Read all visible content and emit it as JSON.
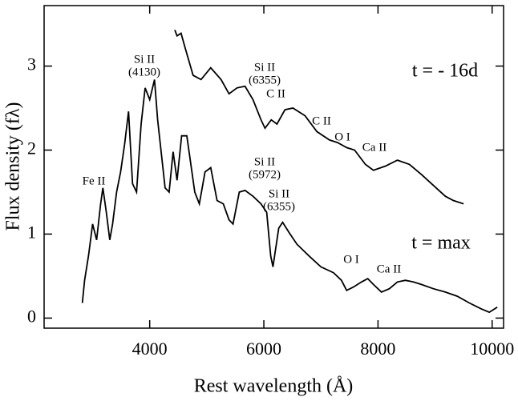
{
  "chart_data": {
    "type": "line",
    "xlabel": "Rest wavelength (Å)",
    "ylabel": "Flux density (fλ)",
    "xlim": [
      2150,
      10200
    ],
    "xticks": [
      4000,
      6000,
      8000,
      10000
    ],
    "ylim": [
      -0.12,
      3.72
    ],
    "yticks": [
      0,
      1,
      2,
      3
    ],
    "series": [
      {
        "name": "t = - 16d",
        "color": "#000000",
        "x": [
          4440,
          4480,
          4550,
          4620,
          4760,
          4900,
          5070,
          5250,
          5390,
          5530,
          5670,
          5810,
          5950,
          6020,
          6130,
          6230,
          6370,
          6510,
          6720,
          6930,
          7150,
          7290,
          7450,
          7590,
          7780,
          7920,
          8130,
          8340,
          8550,
          8760,
          8970,
          9180,
          9320,
          9500
        ],
        "values": [
          3.43,
          3.36,
          3.39,
          3.22,
          2.89,
          2.84,
          2.98,
          2.84,
          2.67,
          2.74,
          2.76,
          2.6,
          2.36,
          2.26,
          2.36,
          2.31,
          2.48,
          2.5,
          2.41,
          2.22,
          2.12,
          2.09,
          2.03,
          2.0,
          1.83,
          1.76,
          1.81,
          1.88,
          1.83,
          1.71,
          1.58,
          1.45,
          1.4,
          1.36
        ]
      },
      {
        "name": "t = max",
        "color": "#000000",
        "x": [
          2820,
          2860,
          2930,
          3000,
          3070,
          3140,
          3180,
          3240,
          3300,
          3350,
          3420,
          3490,
          3560,
          3630,
          3700,
          3770,
          3850,
          3920,
          4000,
          4085,
          4140,
          4270,
          4340,
          4410,
          4480,
          4560,
          4650,
          4730,
          4790,
          4870,
          4970,
          5070,
          5180,
          5290,
          5390,
          5460,
          5570,
          5670,
          5810,
          5950,
          6050,
          6120,
          6160,
          6260,
          6330,
          6440,
          6580,
          6790,
          7000,
          7220,
          7360,
          7450,
          7570,
          7710,
          7820,
          7920,
          8060,
          8200,
          8340,
          8480,
          8620,
          8760,
          8970,
          9180,
          9390,
          9600,
          9810,
          9950,
          10090
        ],
        "values": [
          0.18,
          0.45,
          0.75,
          1.12,
          0.93,
          1.36,
          1.55,
          1.26,
          0.93,
          1.12,
          1.5,
          1.74,
          2.07,
          2.46,
          1.6,
          1.5,
          2.31,
          2.74,
          2.6,
          2.84,
          2.36,
          1.55,
          1.5,
          1.98,
          1.64,
          2.17,
          2.17,
          1.79,
          1.5,
          1.36,
          1.74,
          1.79,
          1.4,
          1.36,
          1.17,
          1.12,
          1.5,
          1.52,
          1.45,
          1.36,
          1.26,
          0.74,
          0.61,
          1.07,
          1.14,
          1.02,
          0.88,
          0.74,
          0.61,
          0.54,
          0.45,
          0.33,
          0.37,
          0.43,
          0.47,
          0.4,
          0.31,
          0.35,
          0.43,
          0.45,
          0.43,
          0.4,
          0.35,
          0.31,
          0.26,
          0.18,
          0.11,
          0.07,
          0.13
        ]
      }
    ],
    "annotations": [
      [
        "Si II",
        "(4130)"
      ],
      [
        "Si II",
        "(6355)"
      ],
      [
        "C II"
      ],
      [
        "C II"
      ],
      [
        "O I"
      ],
      [
        "Ca II"
      ],
      [
        "Fe II"
      ],
      [
        "Si II",
        "(5972)"
      ],
      [
        "Si II",
        "(6355)"
      ],
      [
        "O I"
      ],
      [
        "Ca II"
      ]
    ]
  }
}
